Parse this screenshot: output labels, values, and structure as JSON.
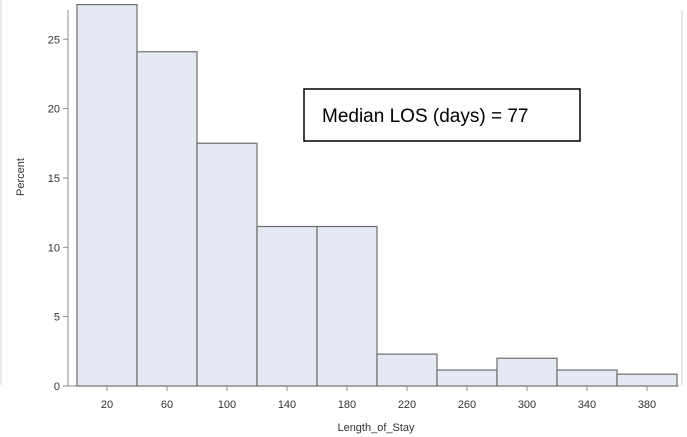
{
  "chart_data": {
    "type": "bar",
    "categories": [
      "20",
      "60",
      "100",
      "140",
      "180",
      "220",
      "260",
      "300",
      "340",
      "380"
    ],
    "values": [
      27.5,
      24.1,
      17.5,
      11.5,
      11.5,
      2.3,
      1.15,
      2.0,
      1.15,
      0.85
    ],
    "xlabel": "Length_of_Stay",
    "ylabel": "Percent",
    "yticks": [
      0,
      5,
      10,
      15,
      20,
      25
    ],
    "ylim": [
      0,
      28.5
    ],
    "grid": false,
    "annotation": "Median LOS (days) = 77",
    "colors": {
      "bar_fill": "#e4e9f3",
      "bar_stroke": "#6f6f6f",
      "axis": "#8c8c8c"
    }
  }
}
